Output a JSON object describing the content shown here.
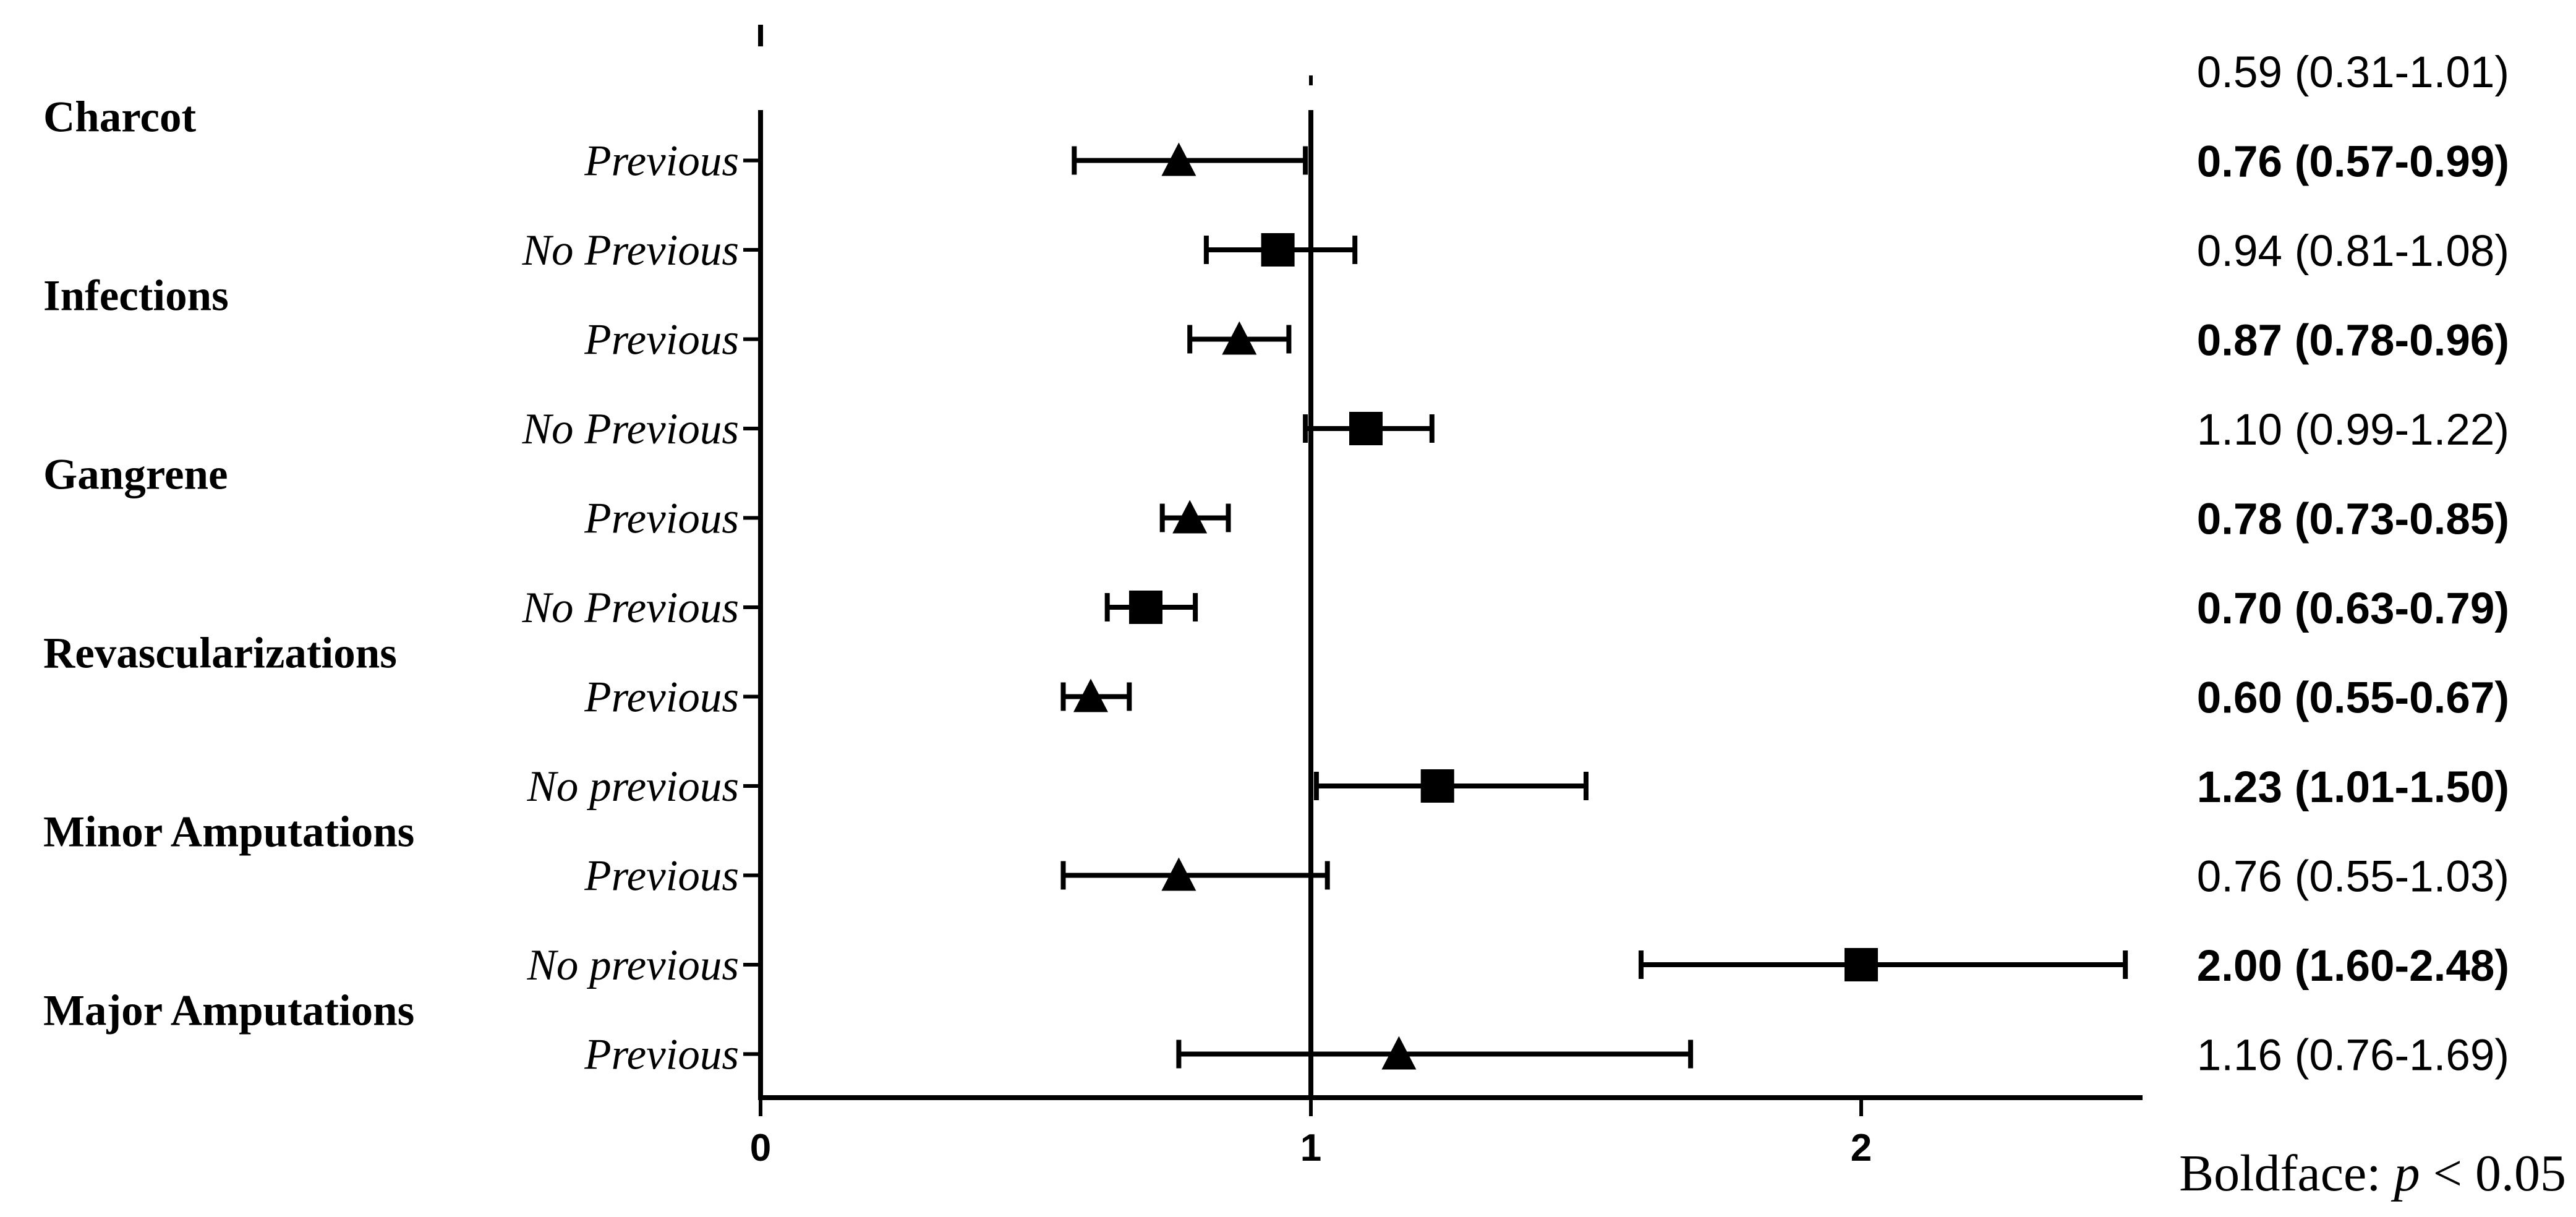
{
  "chart_data": {
    "type": "forest",
    "x_axis": {
      "ticks": [
        0,
        1,
        2
      ],
      "xlim": [
        0,
        2.5
      ],
      "reference_line": 1
    },
    "categories": [
      {
        "label": "Charcot",
        "rows": [
          0,
          1
        ]
      },
      {
        "label": "Infections",
        "rows": [
          2,
          3
        ]
      },
      {
        "label": "Gangrene",
        "rows": [
          4,
          5
        ]
      },
      {
        "label": "Revascularizations",
        "rows": [
          6,
          7
        ]
      },
      {
        "label": "Minor Amputations",
        "rows": [
          8,
          9
        ]
      },
      {
        "label": "Major Amputations",
        "rows": [
          10,
          11
        ]
      }
    ],
    "rows": [
      {
        "label": "",
        "marker": "square",
        "estimate": 0.59,
        "low": 0.31,
        "high": 1.01,
        "text": "0.59 (0.31-1.01)",
        "significant": false,
        "plotted": false
      },
      {
        "label": "Previous",
        "marker": "triangle",
        "estimate": 0.76,
        "low": 0.57,
        "high": 0.99,
        "text": "0.76 (0.57-0.99)",
        "significant": true,
        "plotted": true
      },
      {
        "label": "No Previous",
        "marker": "square",
        "estimate": 0.94,
        "low": 0.81,
        "high": 1.08,
        "text": "0.94 (0.81-1.08)",
        "significant": false,
        "plotted": true
      },
      {
        "label": "Previous",
        "marker": "triangle",
        "estimate": 0.87,
        "low": 0.78,
        "high": 0.96,
        "text": "0.87 (0.78-0.96)",
        "significant": true,
        "plotted": true
      },
      {
        "label": "No Previous",
        "marker": "square",
        "estimate": 1.1,
        "low": 0.99,
        "high": 1.22,
        "text": "1.10 (0.99-1.22)",
        "significant": false,
        "plotted": true
      },
      {
        "label": "Previous",
        "marker": "triangle",
        "estimate": 0.78,
        "low": 0.73,
        "high": 0.85,
        "text": "0.78 (0.73-0.85)",
        "significant": true,
        "plotted": true
      },
      {
        "label": "No Previous",
        "marker": "square",
        "estimate": 0.7,
        "low": 0.63,
        "high": 0.79,
        "text": "0.70 (0.63-0.79)",
        "significant": true,
        "plotted": true
      },
      {
        "label": "Previous",
        "marker": "triangle",
        "estimate": 0.6,
        "low": 0.55,
        "high": 0.67,
        "text": "0.60 (0.55-0.67)",
        "significant": true,
        "plotted": true
      },
      {
        "label": "No previous",
        "marker": "square",
        "estimate": 1.23,
        "low": 1.01,
        "high": 1.5,
        "text": "1.23 (1.01-1.50)",
        "significant": true,
        "plotted": true
      },
      {
        "label": "Previous",
        "marker": "triangle",
        "estimate": 0.76,
        "low": 0.55,
        "high": 1.03,
        "text": "0.76 (0.55-1.03)",
        "significant": false,
        "plotted": true
      },
      {
        "label": "No previous",
        "marker": "square",
        "estimate": 2.0,
        "low": 1.6,
        "high": 2.48,
        "text": "2.00 (1.60-2.48)",
        "significant": true,
        "plotted": true
      },
      {
        "label": "Previous",
        "marker": "triangle",
        "estimate": 1.16,
        "low": 0.76,
        "high": 1.69,
        "text": "1.16 (0.76-1.69)",
        "significant": false,
        "plotted": true
      }
    ],
    "grid": false,
    "footnote": {
      "prefix": "Boldface: ",
      "p": "p",
      "suffix": " < 0.05"
    }
  }
}
